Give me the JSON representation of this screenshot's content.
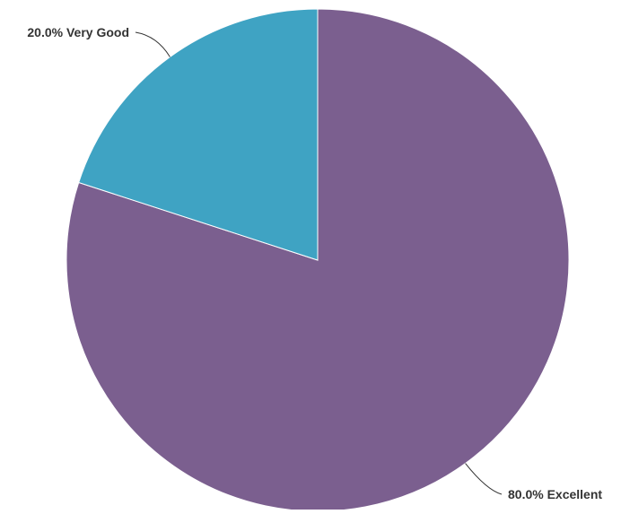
{
  "chart_data": {
    "type": "pie",
    "title": "",
    "slices": [
      {
        "label": "Excellent",
        "value": 80.0,
        "display": "80.0% Excellent",
        "color": "#7b5f8f"
      },
      {
        "label": "Very Good",
        "value": 20.0,
        "display": "20.0% Very Good",
        "color": "#3fa3c3"
      }
    ],
    "start_angle": "12 o'clock",
    "direction": "clockwise",
    "legend": "none"
  }
}
